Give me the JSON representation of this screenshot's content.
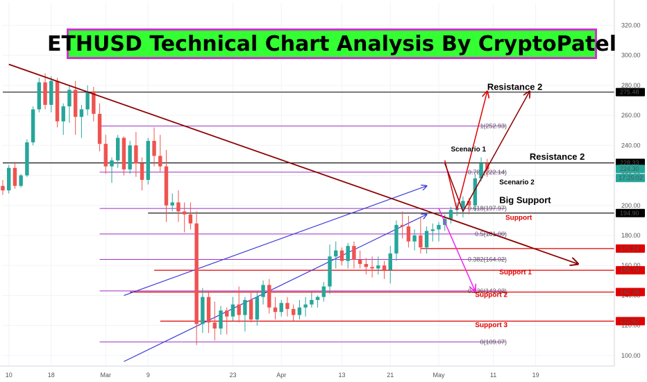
{
  "chart_data": {
    "type": "candlestick",
    "title": "ETHUSD Technical Chart Analysis By CryptoPatel",
    "y_range": [
      93,
      335
    ],
    "x_range": [
      0,
      101
    ],
    "y_ticks": [
      100,
      120,
      140,
      160,
      180,
      200,
      220,
      240,
      260,
      280,
      300,
      320
    ],
    "x_ticks": [
      {
        "i": 1,
        "label": "10"
      },
      {
        "i": 8,
        "label": "18"
      },
      {
        "i": 17,
        "label": "Mar"
      },
      {
        "i": 24,
        "label": "9"
      },
      {
        "i": 38,
        "label": "23"
      },
      {
        "i": 46,
        "label": "Apr"
      },
      {
        "i": 56,
        "label": "13"
      },
      {
        "i": 64,
        "label": "21"
      },
      {
        "i": 72,
        "label": "May"
      },
      {
        "i": 81,
        "label": "11"
      },
      {
        "i": 88,
        "label": "19"
      }
    ],
    "candles": [
      [
        213,
        217,
        207,
        210
      ],
      [
        210,
        227,
        208,
        225
      ],
      [
        225,
        229,
        211,
        213
      ],
      [
        213,
        221,
        212,
        220
      ],
      [
        220,
        244,
        219,
        242
      ],
      [
        242,
        266,
        240,
        264
      ],
      [
        264,
        285,
        262,
        282
      ],
      [
        282,
        288,
        264,
        267
      ],
      [
        267,
        286,
        262,
        283
      ],
      [
        283,
        285,
        252,
        256
      ],
      [
        256,
        268,
        247,
        266
      ],
      [
        266,
        280,
        255,
        277
      ],
      [
        277,
        283,
        247,
        259
      ],
      [
        259,
        267,
        245,
        264
      ],
      [
        264,
        280,
        260,
        276
      ],
      [
        276,
        279,
        256,
        261
      ],
      [
        261,
        268,
        236,
        241
      ],
      [
        241,
        247,
        221,
        226
      ],
      [
        226,
        232,
        215,
        230
      ],
      [
        230,
        247,
        225,
        245
      ],
      [
        245,
        246,
        220,
        224
      ],
      [
        224,
        243,
        221,
        240
      ],
      [
        240,
        249,
        219,
        228
      ],
      [
        228,
        232,
        210,
        217
      ],
      [
        217,
        245,
        214,
        243
      ],
      [
        243,
        252,
        226,
        233
      ],
      [
        233,
        247,
        222,
        226
      ],
      [
        226,
        237,
        189,
        200
      ],
      [
        200,
        208,
        196,
        202
      ],
      [
        202,
        210,
        189,
        196
      ],
      [
        196,
        202,
        182,
        194
      ],
      [
        194,
        202,
        184,
        188
      ],
      [
        188,
        196,
        107,
        121
      ],
      [
        121,
        145,
        115,
        139
      ],
      [
        139,
        143,
        115,
        122
      ],
      [
        122,
        136,
        110,
        118
      ],
      [
        118,
        133,
        114,
        130
      ],
      [
        130,
        132,
        114,
        126
      ],
      [
        126,
        139,
        123,
        134
      ],
      [
        134,
        146,
        122,
        127
      ],
      [
        127,
        139,
        116,
        137
      ],
      [
        137,
        143,
        122,
        124
      ],
      [
        124,
        142,
        120,
        139
      ],
      [
        139,
        150,
        134,
        147
      ],
      [
        147,
        151,
        128,
        132
      ],
      [
        132,
        139,
        124,
        129
      ],
      [
        129,
        137,
        126,
        135
      ],
      [
        135,
        139,
        126,
        131
      ],
      [
        131,
        134,
        123,
        127
      ],
      [
        127,
        137,
        124,
        132
      ],
      [
        132,
        139,
        126,
        134
      ],
      [
        134,
        142,
        132,
        137
      ],
      [
        137,
        140,
        132,
        139
      ],
      [
        139,
        149,
        136,
        146
      ],
      [
        146,
        174,
        141,
        166
      ],
      [
        166,
        176,
        158,
        170
      ],
      [
        170,
        172,
        160,
        163
      ],
      [
        163,
        175,
        158,
        173
      ],
      [
        173,
        176,
        158,
        164
      ],
      [
        164,
        170,
        158,
        161
      ],
      [
        161,
        165,
        154,
        159
      ],
      [
        159,
        166,
        152,
        158
      ],
      [
        158,
        166,
        154,
        160
      ],
      [
        160,
        163,
        151,
        157
      ],
      [
        157,
        173,
        148,
        168
      ],
      [
        168,
        190,
        163,
        187
      ],
      [
        187,
        196,
        178,
        186
      ],
      [
        186,
        193,
        172,
        176
      ],
      [
        176,
        184,
        170,
        180
      ],
      [
        180,
        192,
        168,
        172
      ],
      [
        172,
        186,
        168,
        183
      ],
      [
        183,
        188,
        176,
        184
      ],
      [
        184,
        189,
        176,
        187
      ],
      [
        187,
        194,
        183,
        191
      ],
      [
        191,
        199,
        188,
        197
      ],
      [
        197,
        202,
        193,
        198
      ],
      [
        198,
        206,
        192,
        203
      ],
      [
        203,
        205,
        194,
        200
      ],
      [
        200,
        221,
        196,
        218
      ],
      [
        218,
        232,
        216,
        228
      ],
      [
        228,
        231,
        219,
        224
      ]
    ],
    "price_labels": [
      {
        "value": 275.48,
        "label": "275.48",
        "color": "#000000"
      },
      {
        "value": 228.33,
        "label": "228.33",
        "color": "#000000"
      },
      {
        "value": 224.3,
        "label": "224.30",
        "color": "#26a69a"
      },
      {
        "value": 194.9,
        "label": "194.90",
        "color": "#000000"
      },
      {
        "value": 171.24,
        "label": "171.24",
        "color": "#e00000"
      },
      {
        "value": 156.79,
        "label": "156.79",
        "color": "#e00000"
      },
      {
        "value": 142.28,
        "label": "142.28",
        "color": "#e00000"
      },
      {
        "value": 122.92,
        "label": "122.92",
        "color": "#e00000"
      }
    ],
    "countdown": "17:25:02",
    "fib_levels": [
      {
        "value": 252.93,
        "label": "1(252.93)"
      },
      {
        "value": 222.14,
        "label": "0.786(222.14)"
      },
      {
        "value": 197.97,
        "label": "0.618(197.97)"
      },
      {
        "value": 181.0,
        "label": "0.5(181.00)"
      },
      {
        "value": 164.02,
        "label": "0.382(164.02)"
      },
      {
        "value": 143.02,
        "label": "0.236(143.02)"
      },
      {
        "value": 109.07,
        "label": "0(109.07)"
      }
    ],
    "annotations": [
      {
        "text": "Resistance 2",
        "x": 80,
        "y": 277,
        "color": "#000000",
        "size": 13
      },
      {
        "text": "Resistance 2",
        "x": 87,
        "y": 230.5,
        "color": "#000000",
        "size": 13
      },
      {
        "text": "Scenario 1",
        "x": 74,
        "y": 236,
        "color": "#000000",
        "size": 10
      },
      {
        "text": "Scenario 2",
        "x": 82,
        "y": 214,
        "color": "#000000",
        "size": 10
      },
      {
        "text": "Big Support",
        "x": 82,
        "y": 201.5,
        "color": "#000000",
        "size": 13
      },
      {
        "text": "Support",
        "x": 83,
        "y": 190.5,
        "color": "#e00000",
        "size": 10
      },
      {
        "text": "Support 1",
        "x": 82,
        "y": 154,
        "color": "#e00000",
        "size": 10
      },
      {
        "text": "Support 2",
        "x": 78,
        "y": 139,
        "color": "#e00000",
        "size": 10
      },
      {
        "text": "Support 3",
        "x": 78,
        "y": 119,
        "color": "#e00000",
        "size": 10
      }
    ],
    "colors": {
      "up": "#26a69a",
      "down": "#ef5350",
      "trend": "#8b0000",
      "channel": "#3b3bd6",
      "fib": "#9b2fc4",
      "level_red": "#e00000"
    }
  }
}
